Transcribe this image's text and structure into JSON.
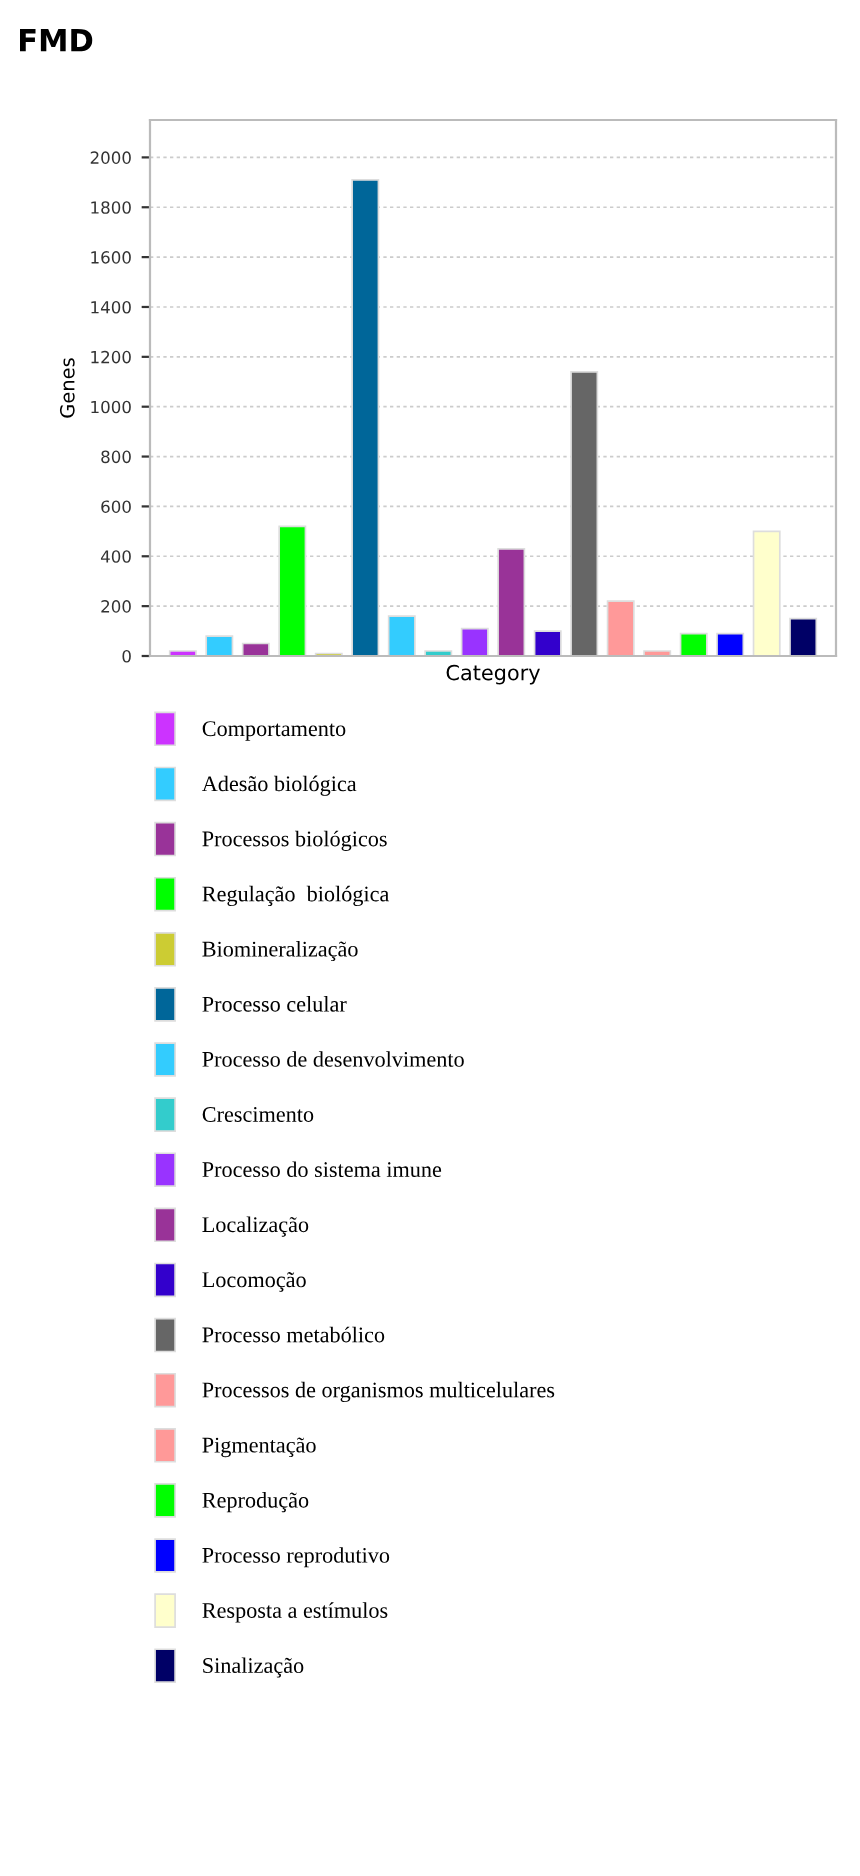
{
  "chart_data": {
    "type": "bar",
    "title": "FMD",
    "xlabel": "Category",
    "ylabel": "Genes",
    "categories": [
      null,
      null,
      null,
      null,
      null,
      null,
      null,
      null,
      null,
      null,
      null,
      null,
      null,
      null,
      null,
      null,
      null,
      null
    ],
    "series": [
      {
        "name": "Comportamento",
        "color": "#cc33ff",
        "values": [
          20,
          null,
          null,
          null,
          null,
          null,
          null,
          null,
          null,
          null,
          null,
          null,
          null,
          null,
          null,
          null,
          null,
          null
        ]
      },
      {
        "name": "Adesão biológica",
        "color": "#33ccff",
        "values": [
          null,
          80,
          null,
          null,
          null,
          null,
          null,
          null,
          null,
          null,
          null,
          null,
          null,
          null,
          null,
          null,
          null,
          null
        ]
      },
      {
        "name": "Processos biológicos",
        "color": "#993399",
        "values": [
          null,
          null,
          50,
          null,
          null,
          null,
          null,
          null,
          null,
          null,
          null,
          null,
          null,
          null,
          null,
          null,
          null,
          null
        ]
      },
      {
        "name": "Regulação  biológica",
        "color": "#00ff00",
        "values": [
          null,
          null,
          null,
          520,
          null,
          null,
          null,
          null,
          null,
          null,
          null,
          null,
          null,
          null,
          null,
          null,
          null,
          null
        ]
      },
      {
        "name": "Biomineralização",
        "color": "#cccc33",
        "values": [
          null,
          null,
          null,
          null,
          10,
          null,
          null,
          null,
          null,
          null,
          null,
          null,
          null,
          null,
          null,
          null,
          null,
          null
        ]
      },
      {
        "name": "Processo celular",
        "color": "#006699",
        "values": [
          null,
          null,
          null,
          null,
          null,
          1910,
          null,
          null,
          null,
          null,
          null,
          null,
          null,
          null,
          null,
          null,
          null,
          null
        ]
      },
      {
        "name": "Processo de desenvolvimento",
        "color": "#33ccfe",
        "values": [
          null,
          null,
          null,
          null,
          null,
          null,
          160,
          null,
          null,
          null,
          null,
          null,
          null,
          null,
          null,
          null,
          null,
          null
        ]
      },
      {
        "name": "Crescimento",
        "color": "#33cccc",
        "values": [
          null,
          null,
          null,
          null,
          null,
          null,
          null,
          20,
          null,
          null,
          null,
          null,
          null,
          null,
          null,
          null,
          null,
          null
        ]
      },
      {
        "name": "Processo do sistema imune",
        "color": "#9933ff",
        "values": [
          null,
          null,
          null,
          null,
          null,
          null,
          null,
          null,
          110,
          null,
          null,
          null,
          null,
          null,
          null,
          null,
          null,
          null
        ]
      },
      {
        "name": "Localização",
        "color": "#993398",
        "values": [
          null,
          null,
          null,
          null,
          null,
          null,
          null,
          null,
          null,
          430,
          null,
          null,
          null,
          null,
          null,
          null,
          null,
          null
        ]
      },
      {
        "name": "Locomoção",
        "color": "#3300cc",
        "values": [
          null,
          null,
          null,
          null,
          null,
          null,
          null,
          null,
          null,
          null,
          100,
          null,
          null,
          null,
          null,
          null,
          null,
          null
        ]
      },
      {
        "name": "Processo metabólico",
        "color": "#666666",
        "values": [
          null,
          null,
          null,
          null,
          null,
          null,
          null,
          null,
          null,
          null,
          null,
          1140,
          null,
          null,
          null,
          null,
          null,
          null
        ]
      },
      {
        "name": "Processos de organismos multicelulares",
        "color": "#ff9999",
        "values": [
          null,
          null,
          null,
          null,
          null,
          null,
          null,
          null,
          null,
          null,
          null,
          null,
          220,
          null,
          null,
          null,
          null,
          null
        ]
      },
      {
        "name": "Pigmentação",
        "color": "#ff9998",
        "values": [
          null,
          null,
          null,
          null,
          null,
          null,
          null,
          null,
          null,
          null,
          null,
          null,
          null,
          20,
          null,
          null,
          null,
          null
        ]
      },
      {
        "name": "Reprodução",
        "color": "#00fe00",
        "values": [
          null,
          null,
          null,
          null,
          null,
          null,
          null,
          null,
          null,
          null,
          null,
          null,
          null,
          null,
          90,
          null,
          null,
          null
        ]
      },
      {
        "name": "Processo reprodutivo",
        "color": "#0000ff",
        "values": [
          null,
          null,
          null,
          null,
          null,
          null,
          null,
          null,
          null,
          null,
          null,
          null,
          null,
          null,
          null,
          90,
          null,
          null
        ]
      },
      {
        "name": "Resposta a estímulos",
        "color": "#ffffcc",
        "values": [
          null,
          null,
          null,
          null,
          null,
          null,
          null,
          null,
          null,
          null,
          null,
          null,
          null,
          null,
          null,
          null,
          500,
          null
        ]
      },
      {
        "name": "Sinalização",
        "color": "#000066",
        "values": [
          null,
          null,
          null,
          null,
          null,
          null,
          null,
          null,
          null,
          null,
          null,
          null,
          null,
          null,
          null,
          null,
          null,
          150
        ]
      }
    ],
    "ylim": [
      0,
      2150
    ],
    "yticks": [
      0,
      200,
      400,
      600,
      800,
      1000,
      1200,
      1400,
      1600,
      1800,
      2000
    ],
    "grid": "y",
    "legend": "bottom",
    "tick_labels": "y"
  }
}
